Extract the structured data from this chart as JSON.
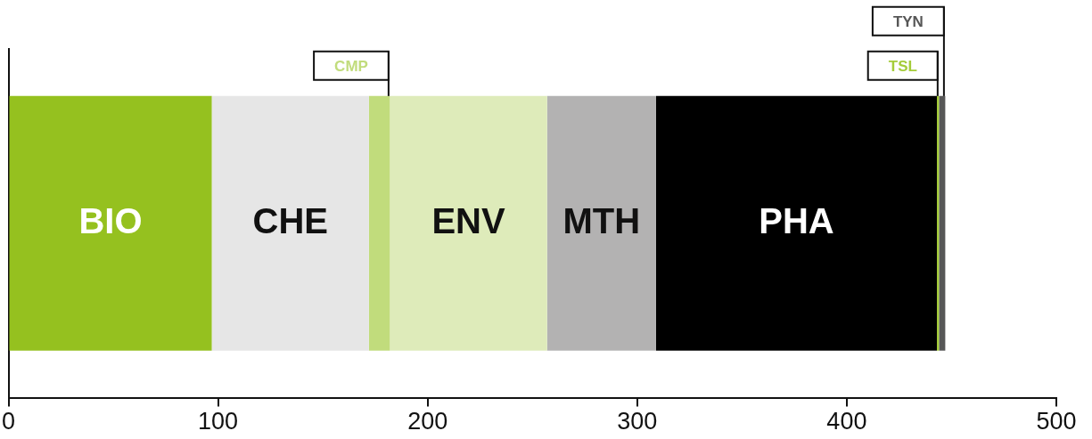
{
  "chart_data": {
    "type": "bar",
    "orientation": "horizontal",
    "stacked": true,
    "categories": [
      null
    ],
    "series": [
      {
        "name": "BIO",
        "color": "#95c11f",
        "values": [
          97
        ]
      },
      {
        "name": "CHE",
        "color": "#e6e6e6",
        "values": [
          75
        ]
      },
      {
        "name": "CMP",
        "color": "#c1dc7c",
        "values": [
          10
        ]
      },
      {
        "name": "ENV",
        "color": "#deebba",
        "values": [
          75
        ]
      },
      {
        "name": "MTH",
        "color": "#b3b2b2",
        "values": [
          52
        ]
      },
      {
        "name": "PHA",
        "color": "#000000",
        "values": [
          134
        ]
      },
      {
        "name": "TSL",
        "color": "#a5cc3a",
        "values": [
          1
        ]
      },
      {
        "name": "TYN",
        "color": "#575757",
        "values": [
          3
        ]
      }
    ],
    "xlim": [
      0,
      500
    ],
    "xticks": [
      0,
      100,
      200,
      300,
      400,
      500
    ],
    "tick_labels": "x",
    "grid": false,
    "legend": false
  }
}
